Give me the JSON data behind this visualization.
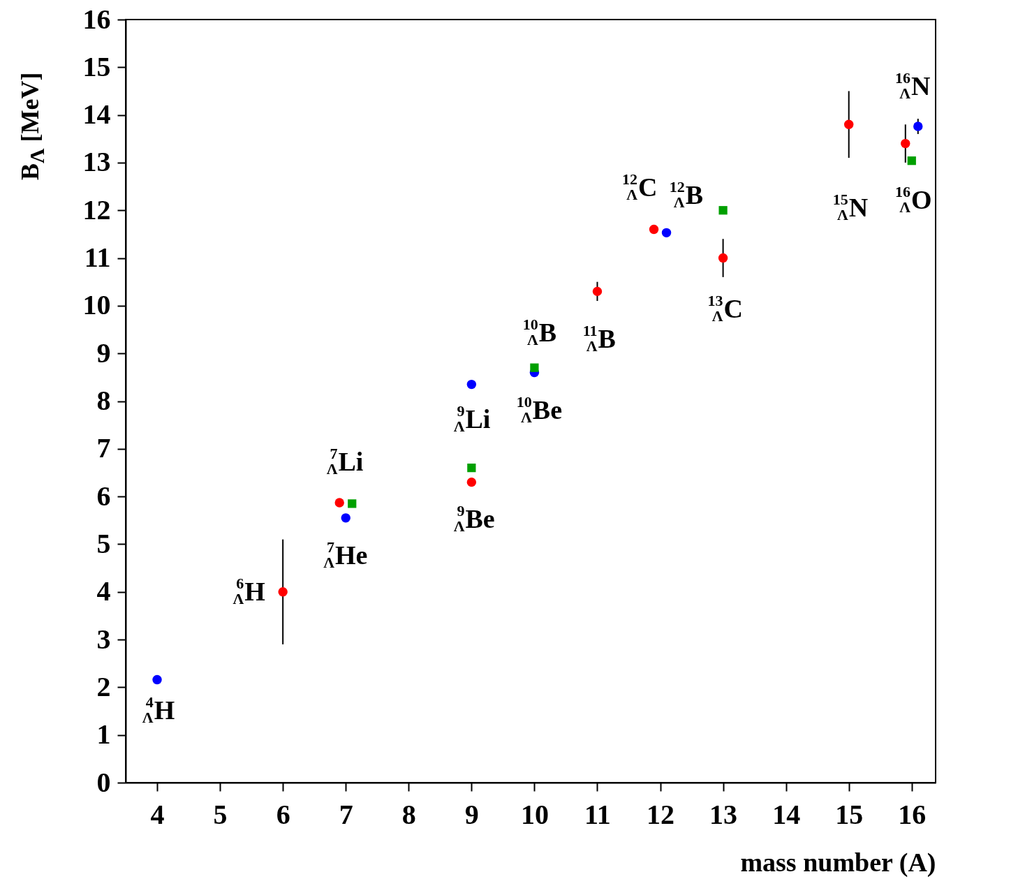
{
  "chart_data": {
    "type": "scatter",
    "xlabel": "mass number (A)",
    "ylabel": "B$_{Λ}$ [MeV]",
    "xlim": [
      3.5,
      16.38
    ],
    "xticks": [
      4,
      5,
      6,
      7,
      8,
      9,
      10,
      11,
      12,
      13,
      14,
      15,
      16
    ],
    "ylim": [
      0,
      16
    ],
    "yticks": [
      0,
      1,
      2,
      3,
      4,
      5,
      6,
      7,
      8,
      9,
      10,
      11,
      12,
      13,
      14,
      15,
      16
    ],
    "grid": false,
    "series": [
      {
        "color": "#ff0000",
        "marker": "circle",
        "x": [
          6,
          6.9,
          9,
          11,
          11.9,
          13,
          15,
          15.9
        ],
        "values": [
          4.0,
          5.87,
          6.3,
          10.3,
          11.6,
          11.0,
          13.8,
          13.4
        ],
        "errors": [
          1.1,
          null,
          null,
          0.2,
          null,
          0.4,
          0.7,
          0.4
        ]
      },
      {
        "color": "#0000ff",
        "marker": "circle",
        "x": [
          4,
          7,
          9,
          10,
          12.1,
          16.1
        ],
        "values": [
          2.16,
          5.55,
          8.35,
          8.6,
          11.53,
          13.76
        ],
        "errors": [
          null,
          null,
          null,
          null,
          null,
          0.16
        ]
      },
      {
        "color": "#00a000",
        "marker": "square",
        "x": [
          7.1,
          9,
          10,
          13,
          16
        ],
        "values": [
          5.85,
          6.6,
          8.7,
          12.0,
          13.04
        ],
        "errors": [
          null,
          null,
          null,
          null,
          null
        ]
      }
    ],
    "annotations": [
      "$^{4}$$_{Λ}$H",
      "$^{6}$$_{Λ}$H",
      "$^{7}$$_{Λ}$Li",
      "$^{7}$$_{Λ}$He",
      "$^{9}$$_{Λ}$Li",
      "$^{9}$$_{Λ}$Be",
      "$^{10}$$_{Λ}$B",
      "$^{10}$$_{Λ}$Be",
      "$^{11}$$_{Λ}$B",
      "$^{12}$$_{Λ}$C",
      "$^{12}$$_{Λ}$B",
      "$^{13}$$_{Λ}$C",
      "$^{15}$$_{Λ}$N",
      "$^{16}$$_{Λ}$O",
      "$^{16}$$_{Λ}$N"
    ]
  }
}
